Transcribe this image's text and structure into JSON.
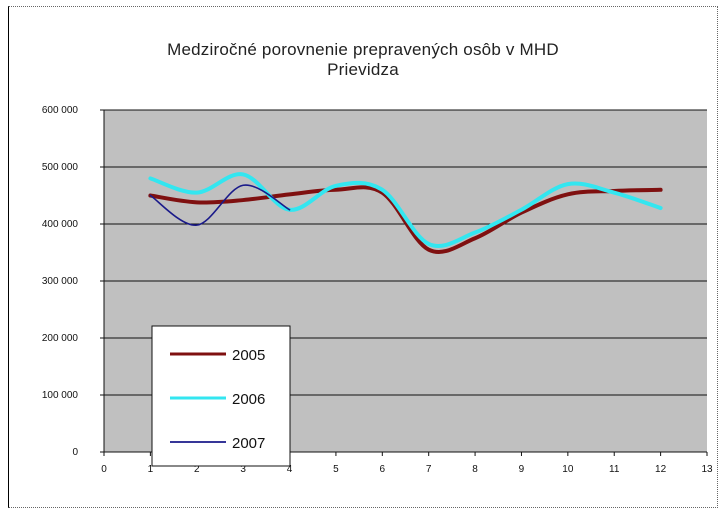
{
  "chart_data": {
    "type": "line",
    "title": "Medziročné porovnenie prepravených osôb v MHD",
    "subtitle": "Prievidza",
    "x": [
      0,
      1,
      2,
      3,
      4,
      5,
      6,
      7,
      8,
      9,
      10,
      11,
      12,
      13
    ],
    "xlim": [
      0,
      13
    ],
    "ylim": [
      0,
      600000
    ],
    "yticks": [
      "0",
      "100 000",
      "200 000",
      "300 000",
      "400 000",
      "500 000",
      "600 000"
    ],
    "xticks": [
      "0",
      "1",
      "2",
      "3",
      "4",
      "5",
      "6",
      "7",
      "8",
      "9",
      "10",
      "11",
      "12",
      "13"
    ],
    "grid": true,
    "legend_position": "bottom-left",
    "series": [
      {
        "name": "2005",
        "color": "#7f1010",
        "x": [
          1,
          2,
          3,
          4,
          5,
          6,
          7,
          8,
          9,
          10,
          11,
          12
        ],
        "values": [
          450000,
          438000,
          442000,
          452000,
          460000,
          455000,
          355000,
          375000,
          420000,
          452000,
          458000,
          460000
        ]
      },
      {
        "name": "2006",
        "color": "#33e6f0",
        "x": [
          1,
          2,
          3,
          4,
          5,
          6,
          7,
          8,
          9,
          10,
          11,
          12
        ],
        "values": [
          480000,
          455000,
          487000,
          425000,
          467000,
          460000,
          365000,
          385000,
          425000,
          470000,
          455000,
          428000
        ]
      },
      {
        "name": "2007",
        "color": "#1a1a8a",
        "x": [
          1,
          2,
          3,
          4
        ],
        "values": [
          450000,
          398000,
          468000,
          425000
        ]
      }
    ]
  }
}
